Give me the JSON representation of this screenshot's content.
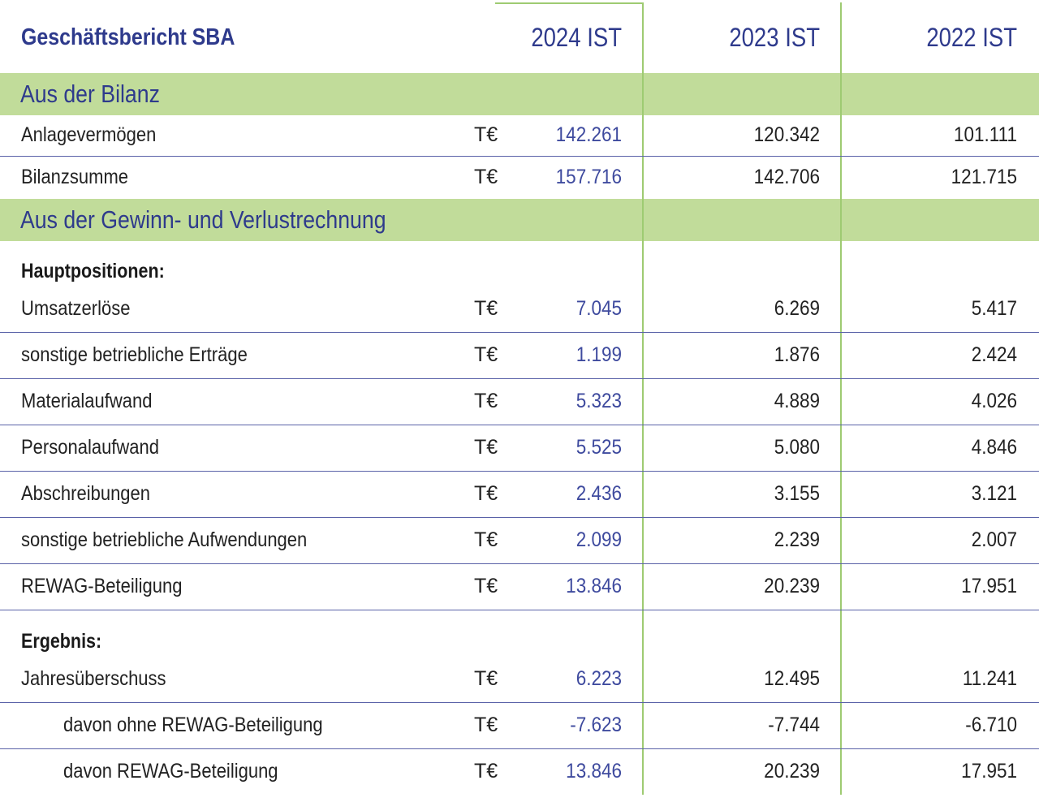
{
  "header": {
    "title": "Geschäftsbericht SBA",
    "col_2024": "2024 IST",
    "col_2023": "2023 IST",
    "col_2022": "2022 IST"
  },
  "sections": {
    "bilanz": "Aus der Bilanz",
    "guv": "Aus der Gewinn- und Verlustrechnung",
    "hauptpositionen": "Hauptpositionen:",
    "ergebnis": "Ergebnis:"
  },
  "rows": [
    {
      "label": "Anlagevermögen",
      "unit": "T€",
      "v2024": "142.261",
      "v2023": "120.342",
      "v2022": "101.111"
    },
    {
      "label": "Bilanzsumme",
      "unit": "T€",
      "v2024": "157.716",
      "v2023": "142.706",
      "v2022": "121.715"
    },
    {
      "label": "Umsatzerlöse",
      "unit": "T€",
      "v2024": "7.045",
      "v2023": "6.269",
      "v2022": "5.417"
    },
    {
      "label": "sonstige betriebliche Erträge",
      "unit": "T€",
      "v2024": "1.199",
      "v2023": "1.876",
      "v2022": "2.424"
    },
    {
      "label": "Materialaufwand",
      "unit": "T€",
      "v2024": "5.323",
      "v2023": "4.889",
      "v2022": "4.026"
    },
    {
      "label": "Personalaufwand",
      "unit": "T€",
      "v2024": "5.525",
      "v2023": "5.080",
      "v2022": "4.846"
    },
    {
      "label": "Abschreibungen",
      "unit": "T€",
      "v2024": "2.436",
      "v2023": "3.155",
      "v2022": "3.121"
    },
    {
      "label": "sonstige betriebliche Aufwendungen",
      "unit": "T€",
      "v2024": "2.099",
      "v2023": "2.239",
      "v2022": "2.007"
    },
    {
      "label": "REWAG-Beteiligung",
      "unit": "T€",
      "v2024": "13.846",
      "v2023": "20.239",
      "v2022": "17.951"
    },
    {
      "label": "Jahresüberschuss",
      "unit": "T€",
      "v2024": "6.223",
      "v2023": "12.495",
      "v2022": "11.241"
    },
    {
      "label": "davon ohne REWAG-Beteiligung",
      "unit": "T€",
      "v2024": "-7.623",
      "v2023": "-7.744",
      "v2022": "-6.710"
    },
    {
      "label": "davon REWAG-Beteiligung",
      "unit": "T€",
      "v2024": "13.846",
      "v2023": "20.239",
      "v2022": "17.951"
    }
  ],
  "colors": {
    "accent_blue": "#2e3a8c",
    "band_green": "#c1dc9a",
    "line_green": "#9ecb72"
  }
}
